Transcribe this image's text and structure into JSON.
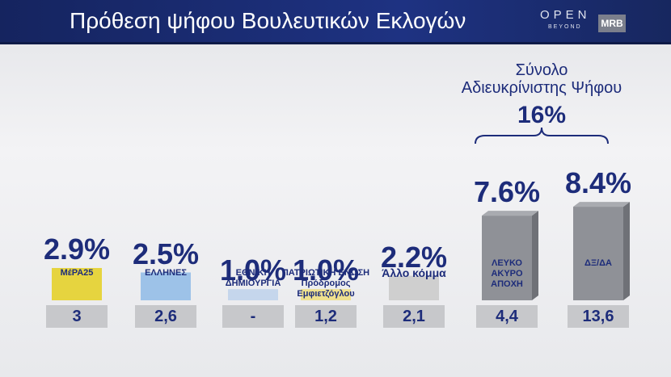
{
  "branding": {
    "title": "Πρόθεση ψήφου Βουλευτικών Εκλογών",
    "channel": "OPEN",
    "channel_tag": "BEYOND",
    "pollster": "MRB"
  },
  "chart_data": {
    "type": "bar",
    "categories": [
      "ΜέΡΑ25",
      "ΕΛΛΗΝΕΣ",
      "ΕΘΝΙΚΗ\nΔΗΜΙΟΥΡΓΙΑ",
      "ΠΑΤΡΙΩΤΙΚΗ ΕΝΩΣΗ\nΠρόδρομος Εμφιετζόγλου",
      "Άλλο κόμμα",
      "ΛΕΥΚΟ\nΑΚΥΡΟ\nΑΠΟΧΗ",
      "ΔΞ/ΔΑ"
    ],
    "colors": [
      "#e6d43f",
      "#9dc2e8",
      "#c5d6ec",
      "#efe08e",
      "#cfcfcf",
      "#8f9197",
      "#8f9197"
    ],
    "series": [
      {
        "values": [
          2.9,
          2.5,
          1.0,
          1.0,
          2.2,
          7.6,
          8.4
        ],
        "value_labels": [
          "2.9%",
          "2.5%",
          "1.0%",
          "1.0%",
          "2.2%",
          "7.6%",
          "8.4%"
        ]
      },
      {
        "values": [
          3,
          2.6,
          null,
          1.2,
          2.1,
          4.4,
          13.6
        ],
        "value_labels": [
          "3",
          "2,6",
          "-",
          "1,2",
          "2,1",
          "4,4",
          "13,6"
        ]
      }
    ],
    "annotation": {
      "text": "Σύνολο\nΑδιευκρίνιστης Ψήφου",
      "value": 16,
      "label": "16%"
    }
  }
}
